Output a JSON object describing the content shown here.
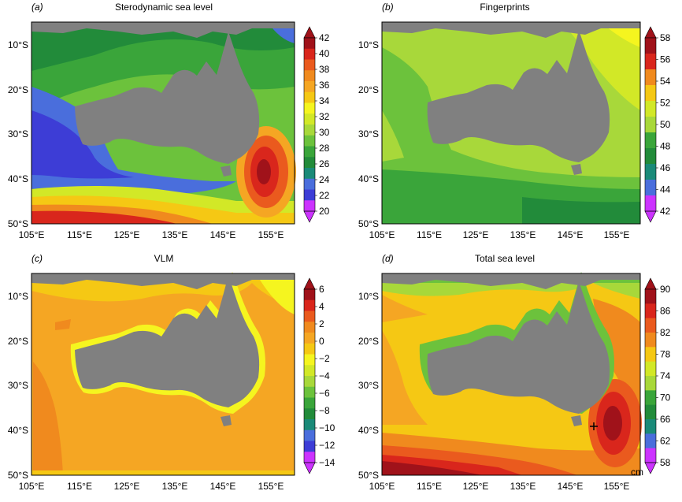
{
  "colors": {
    "land": "#808080",
    "purple": "#cc33ff",
    "blue_dark": "#3d3dd6",
    "blue": "#4a6edc",
    "teal": "#1a8a78",
    "green_dark": "#228b3a",
    "green": "#3aa53a",
    "green_light": "#6cc23c",
    "yellowgreen": "#a8d83a",
    "lime": "#d2e827",
    "yellow": "#f5f51f",
    "gold": "#f5c814",
    "orange_light": "#f5a623",
    "orange": "#f08a1e",
    "red_orange": "#ea5a1e",
    "red": "#d9261c",
    "dark_red": "#a0121a"
  },
  "panels": [
    {
      "letter": "(a)",
      "title": "Sterodynamic sea level",
      "colorbar_ticks": [
        "42",
        "40",
        "38",
        "36",
        "34",
        "32",
        "30",
        "28",
        "26",
        "24",
        "22",
        "20"
      ],
      "unit": ""
    },
    {
      "letter": "(b)",
      "title": "Fingerprints",
      "colorbar_ticks": [
        "58",
        "56",
        "54",
        "52",
        "50",
        "48",
        "46",
        "44",
        "42"
      ],
      "unit": ""
    },
    {
      "letter": "(c)",
      "title": "VLM",
      "colorbar_ticks": [
        "6",
        "4",
        "2",
        "0",
        "−2",
        "−4",
        "−6",
        "−8",
        "−10",
        "−12",
        "−14"
      ],
      "unit": ""
    },
    {
      "letter": "(d)",
      "title": "Total sea level",
      "colorbar_ticks": [
        "90",
        "86",
        "82",
        "78",
        "74",
        "70",
        "66",
        "62",
        "58"
      ],
      "unit": "cm"
    }
  ],
  "lat_ticks": [
    "10°S",
    "20°S",
    "30°S",
    "40°S",
    "50°S"
  ],
  "lon_ticks": [
    "105°E",
    "115°E",
    "125°E",
    "135°E",
    "145°E",
    "155°E"
  ],
  "chart_data": [
    {
      "type": "heatmap",
      "title": "Sterodynamic sea level",
      "xlim": [
        105,
        160
      ],
      "ylim": [
        -50,
        -5
      ],
      "colorbar_levels": [
        20,
        22,
        24,
        26,
        28,
        30,
        32,
        34,
        36,
        38,
        40,
        42
      ]
    },
    {
      "type": "heatmap",
      "title": "Fingerprints",
      "xlim": [
        105,
        160
      ],
      "ylim": [
        -50,
        -5
      ],
      "colorbar_levels": [
        42,
        44,
        46,
        48,
        50,
        52,
        54,
        56,
        58
      ]
    },
    {
      "type": "heatmap",
      "title": "VLM",
      "xlim": [
        105,
        160
      ],
      "ylim": [
        -50,
        -5
      ],
      "colorbar_levels": [
        -14,
        -12,
        -10,
        -8,
        -6,
        -4,
        -2,
        0,
        2,
        4,
        6
      ]
    },
    {
      "type": "heatmap",
      "title": "Total sea level",
      "xlim": [
        105,
        160
      ],
      "ylim": [
        -50,
        -5
      ],
      "colorbar_levels": [
        58,
        62,
        66,
        70,
        74,
        78,
        82,
        86,
        90
      ],
      "unit": "cm"
    }
  ]
}
